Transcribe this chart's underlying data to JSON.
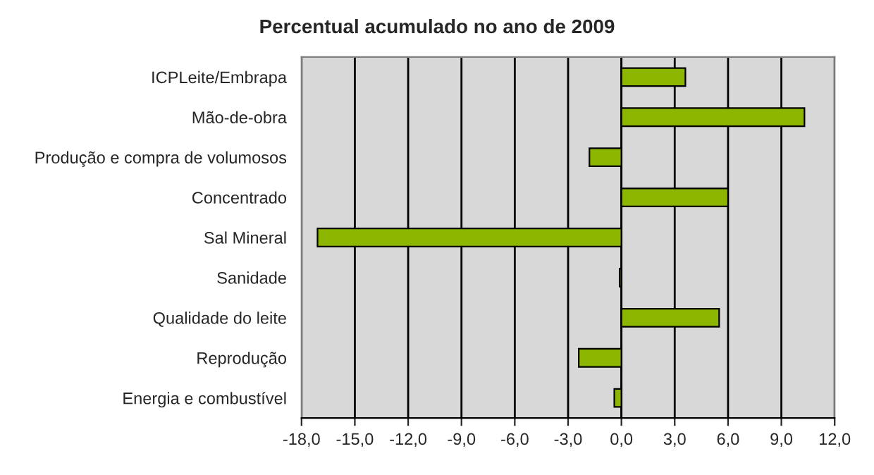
{
  "chart_data": {
    "type": "bar",
    "orientation": "horizontal",
    "title": "Percentual acumulado no ano de 2009",
    "categories": [
      "ICPLeite/Embrapa",
      "Mão-de-obra",
      "Produção e compra de volumosos",
      "Concentrado",
      "Sal Mineral",
      "Sanidade",
      "Qualidade do leite",
      "Reprodução",
      "Energia e combustível"
    ],
    "values": [
      3.6,
      10.3,
      -1.8,
      6.0,
      -17.1,
      -0.1,
      5.5,
      -2.4,
      -0.4
    ],
    "color": "#8db600",
    "xlim": [
      -18,
      12
    ],
    "xticks": [
      {
        "value": -18,
        "label": "-18,0"
      },
      {
        "value": -15,
        "label": "-15,0"
      },
      {
        "value": -12,
        "label": "-12,0"
      },
      {
        "value": -9,
        "label": "-9,0"
      },
      {
        "value": -6,
        "label": "-6,0"
      },
      {
        "value": -3,
        "label": "-3,0"
      },
      {
        "value": 0,
        "label": "0,0"
      },
      {
        "value": 3,
        "label": "3,0"
      },
      {
        "value": 6,
        "label": "6,0"
      },
      {
        "value": 9,
        "label": "9,0"
      },
      {
        "value": 12,
        "label": "12,0"
      }
    ],
    "grid": "x",
    "legend": false
  }
}
